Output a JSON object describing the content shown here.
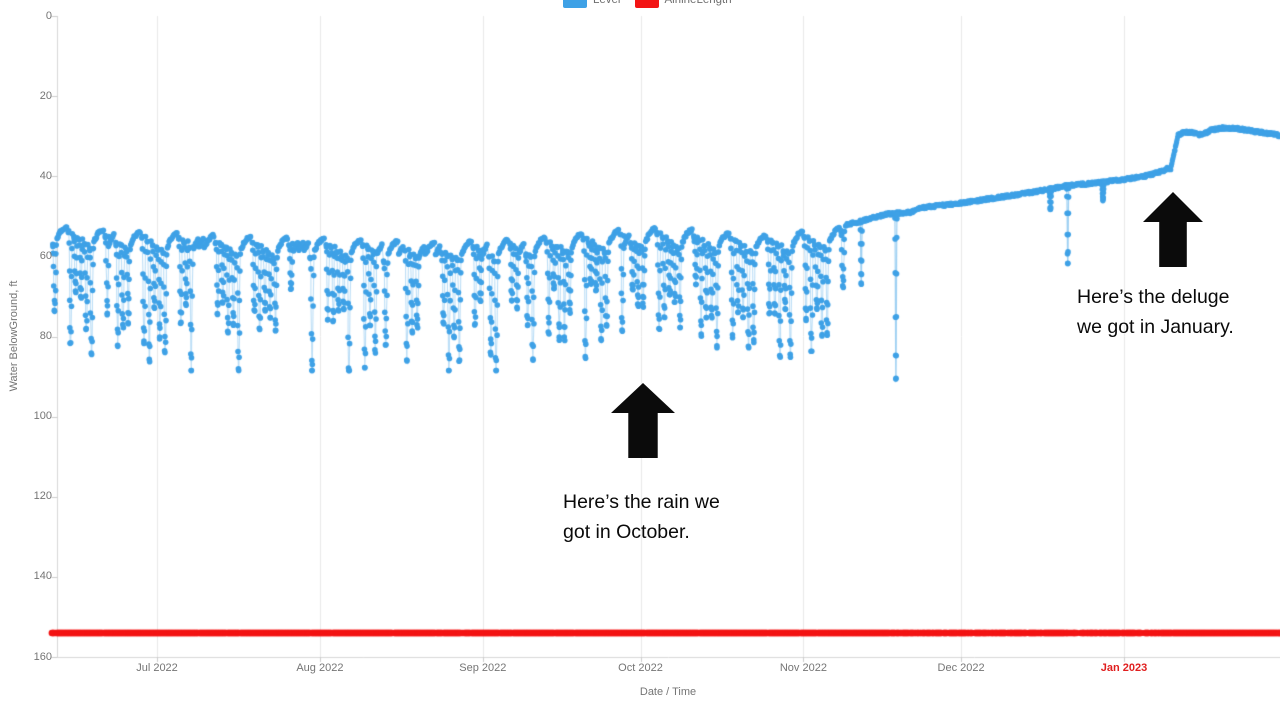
{
  "chart_data": {
    "type": "scatter",
    "title": "",
    "x_axis_title": "Date / Time",
    "y_axis_title": "Water BelowGround, ft",
    "y_inverted": true,
    "ylim": [
      0,
      160
    ],
    "grid": "vertical-only",
    "legend_position": "top-center",
    "y_ticks": [
      "0",
      "20",
      "40",
      "60",
      "80",
      "100",
      "120",
      "140",
      "160"
    ],
    "x_ticks": [
      {
        "label": "Jul 2022",
        "day": 21,
        "highlight": false
      },
      {
        "label": "Aug 2022",
        "day": 52,
        "highlight": false
      },
      {
        "label": "Sep 2022",
        "day": 83,
        "highlight": false
      },
      {
        "label": "Oct 2022",
        "day": 113,
        "highlight": false
      },
      {
        "label": "Nov 2022",
        "day": 144,
        "highlight": false
      },
      {
        "label": "Dec 2022",
        "day": 174,
        "highlight": false
      },
      {
        "label": "Jan 2023",
        "day": 205,
        "highlight": true
      }
    ],
    "x_domain_days": [
      0.85,
      235
    ],
    "series": [
      {
        "name": "Level",
        "color": "#3ea1e6",
        "marker_px": 2.8,
        "envelope_day_ft": [
          [
            0,
            52.3
          ],
          [
            10,
            53.3
          ],
          [
            21,
            54.2
          ],
          [
            35,
            55.0
          ],
          [
            52,
            55.5
          ],
          [
            62,
            56.0
          ],
          [
            71,
            56.6
          ],
          [
            83,
            56.2
          ],
          [
            92,
            55.5
          ],
          [
            100,
            54.4
          ],
          [
            107,
            53.7
          ],
          [
            113,
            53.2
          ],
          [
            117,
            53.0
          ],
          [
            123,
            53.5
          ],
          [
            130,
            54.3
          ],
          [
            137,
            54.8
          ],
          [
            141,
            54.3
          ],
          [
            144,
            53.4
          ],
          [
            147,
            53.8
          ],
          [
            152,
            52.2
          ],
          [
            156,
            50.8
          ],
          [
            160,
            49.4
          ],
          [
            163,
            49.1
          ],
          [
            164.5,
            49.0
          ],
          [
            166,
            47.9
          ],
          [
            174,
            46.7
          ],
          [
            181,
            45.3
          ],
          [
            188,
            43.9
          ],
          [
            194,
            42.4
          ],
          [
            200,
            41.6
          ],
          [
            205,
            40.8
          ],
          [
            208,
            40.2
          ],
          [
            211,
            39.3
          ],
          [
            212.6,
            38.5
          ],
          [
            213.4,
            38.0
          ],
          [
            213.9,
            38.3
          ],
          [
            215.3,
            29.7
          ],
          [
            216.5,
            28.9
          ],
          [
            218,
            29.1
          ],
          [
            219.3,
            29.6
          ],
          [
            220.4,
            29.3
          ],
          [
            221.6,
            28.4
          ],
          [
            224,
            27.9
          ],
          [
            227,
            28.2
          ],
          [
            230.5,
            28.9
          ],
          [
            233,
            29.4
          ],
          [
            235,
            29.9
          ]
        ],
        "pumping": {
          "start_day": 0,
          "end_day": 152,
          "weekday_count": 5,
          "typical_depth_ft": [
            11,
            24
          ],
          "deep_depth_ft": [
            26,
            32
          ],
          "deep_probability": 0.13,
          "skip_probability": 0.08,
          "baseline_offset_ft": 1.2,
          "daily_drawdown_ft": 0.85,
          "weekend_recovery_ft": 3.2,
          "points_per_day": 13,
          "max_depth_cap_ft": 88.5
        },
        "band": {
          "start_day": 152,
          "end_day": 235,
          "step_day": 0.1,
          "noise_ft": 0.35
        },
        "dip_events_day_ft": [
          [
            155,
            67
          ],
          [
            161.6,
            91.3
          ],
          [
            191,
            48.5
          ],
          [
            194.3,
            62.2
          ],
          [
            201,
            46
          ]
        ]
      },
      {
        "name": "AirlineLength",
        "color": "#f31414",
        "marker_px": 3.3,
        "constant_ft": 154,
        "start_day": 1,
        "end_day": 235,
        "step_day": 0.13,
        "sparse_range_day": [
          160,
          212
        ],
        "sparse_skip_probability": 0.18,
        "base_skip_probability": 0.02,
        "gap_segments_day": [
          [
            196.1,
            196.7
          ],
          [
            208.3,
            208.9
          ]
        ]
      }
    ]
  },
  "annotations": [
    {
      "id": "october",
      "lines": [
        "Here’s the rain we",
        "got in October."
      ]
    },
    {
      "id": "january",
      "lines": [
        "Here’s the deluge",
        "we got in January."
      ]
    }
  ]
}
